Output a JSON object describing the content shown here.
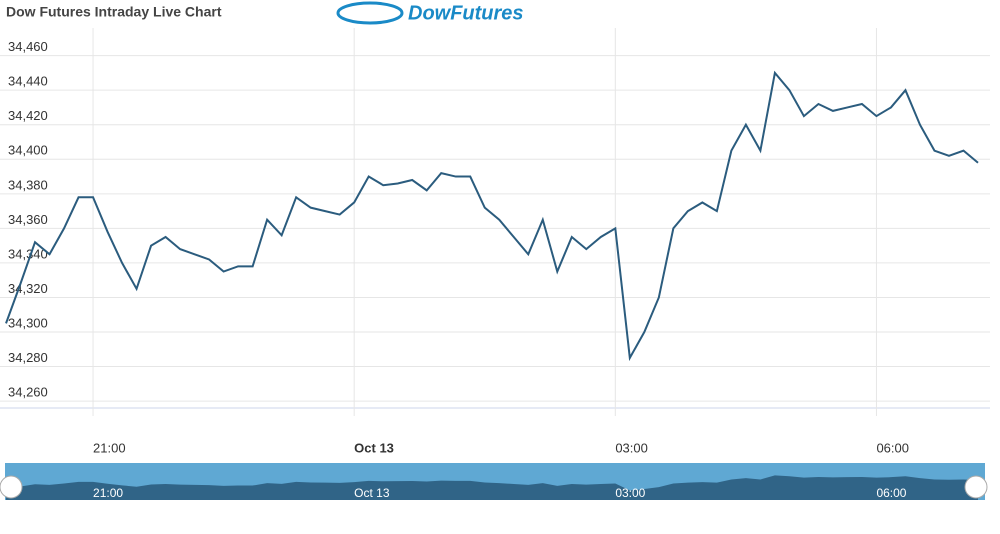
{
  "chart_data": {
    "type": "line",
    "title": "Dow Futures Intraday Live Chart",
    "logo": "DowFutures",
    "categories": [
      null,
      null,
      null,
      null,
      null,
      null,
      "21:00",
      null,
      null,
      null,
      null,
      null,
      null,
      null,
      null,
      null,
      null,
      null,
      null,
      null,
      null,
      null,
      null,
      null,
      "Oct 13",
      null,
      null,
      null,
      null,
      null,
      null,
      null,
      null,
      null,
      null,
      null,
      null,
      null,
      null,
      null,
      null,
      null,
      "03:00",
      null,
      null,
      null,
      null,
      null,
      null,
      null,
      null,
      null,
      null,
      null,
      null,
      null,
      null,
      null,
      null,
      null,
      "06:00",
      null,
      null,
      null,
      null,
      null,
      null,
      null
    ],
    "series": [
      {
        "name": "Dow Futures",
        "color": "#2b5c7e",
        "values": [
          34305,
          34328,
          34352,
          34345,
          34360,
          34378,
          34378,
          34358,
          34340,
          34325,
          34350,
          34355,
          34348,
          34345,
          34342,
          34335,
          34338,
          34338,
          34365,
          34356,
          34378,
          34372,
          34370,
          34368,
          34375,
          34390,
          34385,
          34386,
          34388,
          34382,
          34392,
          34390,
          34390,
          34372,
          34365,
          34355,
          34345,
          34365,
          34335,
          34355,
          34348,
          34355,
          34360,
          34285,
          34300,
          34320,
          34360,
          34370,
          34375,
          34370,
          34405,
          34420,
          34405,
          34450,
          34440,
          34425,
          34432,
          34428,
          34430,
          34432,
          34425,
          34430,
          34440,
          34420,
          34405,
          34402,
          34405,
          34398
        ]
      }
    ],
    "ylim": [
      34256,
      34476
    ],
    "yticks": [
      {
        "value": 34260,
        "label": "34,260"
      },
      {
        "value": 34280,
        "label": "34,280"
      },
      {
        "value": 34300,
        "label": "34,300"
      },
      {
        "value": 34320,
        "label": "34,320"
      },
      {
        "value": 34340,
        "label": "34,340"
      },
      {
        "value": 34360,
        "label": "34,360"
      },
      {
        "value": 34380,
        "label": "34,380"
      },
      {
        "value": 34400,
        "label": "34,400"
      },
      {
        "value": 34420,
        "label": "34,420"
      },
      {
        "value": 34440,
        "label": "34,440"
      },
      {
        "value": 34460,
        "label": "34,460"
      }
    ],
    "grid": true
  }
}
